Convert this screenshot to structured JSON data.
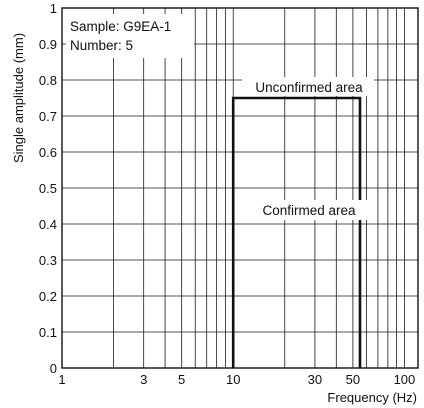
{
  "chart_data": {
    "type": "line",
    "title": "",
    "xlabel": "Frequency (Hz)",
    "ylabel": "Single amplitude (mm)",
    "x_scale": "log",
    "xlim": [
      1,
      120
    ],
    "ylim": [
      0,
      1
    ],
    "x_tick_labels": [
      "1",
      "3",
      "5",
      "10",
      "30",
      "50",
      "100"
    ],
    "y_tick_labels": [
      "0",
      "0.1",
      "0.2",
      "0.3",
      "0.4",
      "0.5",
      "0.6",
      "0.7",
      "0.8",
      "0.9",
      "1"
    ],
    "grid": true,
    "series": [
      {
        "x": [
          10,
          10,
          55,
          55
        ],
        "y": [
          0,
          0.75,
          0.75,
          0
        ]
      }
    ],
    "annotations": {
      "sample": "Sample: G9EA-1",
      "number": "Number: 5",
      "unconfirmed": "Unconfirmed area",
      "confirmed": "Confirmed area"
    }
  }
}
